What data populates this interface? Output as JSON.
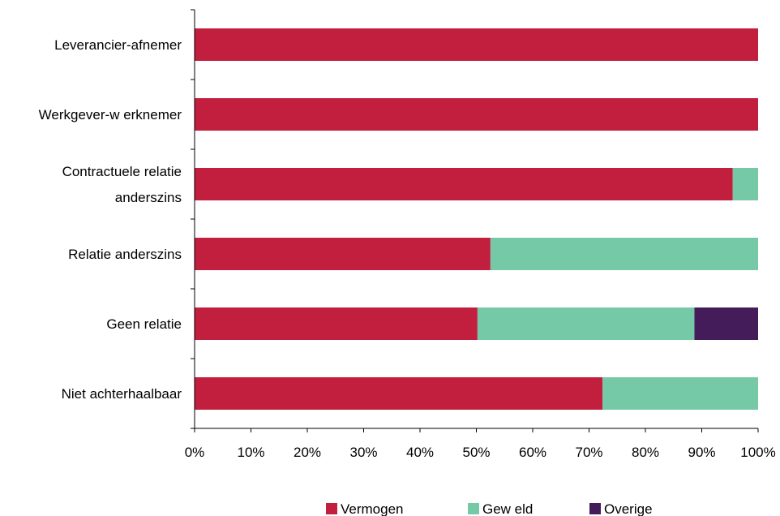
{
  "chart_data": {
    "type": "bar",
    "orientation": "horizontal",
    "stacked": "percent",
    "title": "",
    "xlabel": "",
    "ylabel": "",
    "xlim": [
      0,
      100
    ],
    "x_ticks": [
      "0%",
      "10%",
      "20%",
      "30%",
      "40%",
      "50%",
      "60%",
      "70%",
      "80%",
      "90%",
      "100%"
    ],
    "categories": [
      [
        "Leverancier-afnemer"
      ],
      [
        "Werkgever-w erknemer"
      ],
      [
        "Contractuele relatie",
        "anderszins"
      ],
      [
        "Relatie anderszins"
      ],
      [
        "Geen relatie"
      ],
      [
        "Niet achterhaalbaar"
      ]
    ],
    "series": [
      {
        "name": "Vermogen",
        "color": "#c21e3e",
        "values": [
          100,
          100,
          95.5,
          52.5,
          50.2,
          72.4
        ]
      },
      {
        "name": "Gew eld",
        "color": "#76c9a7",
        "values": [
          0,
          0,
          4.5,
          47.5,
          38.5,
          27.6
        ]
      },
      {
        "name": "Overige",
        "color": "#441c5a",
        "values": [
          0,
          0,
          0,
          0,
          11.3,
          0
        ]
      }
    ],
    "grid": false,
    "legend_position": "bottom"
  }
}
